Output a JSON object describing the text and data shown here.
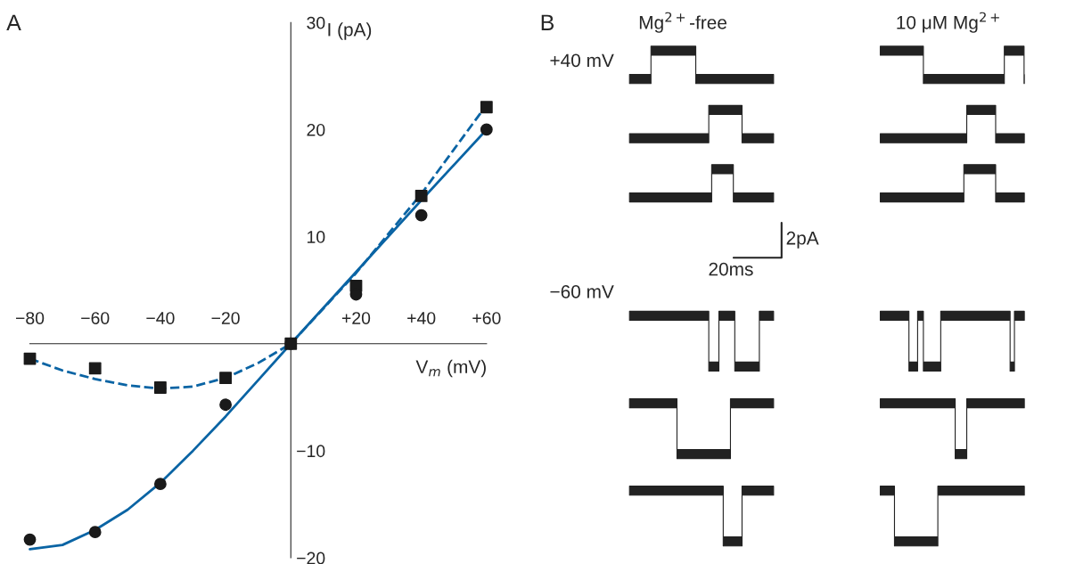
{
  "chart_data": [
    {
      "type": "scatter",
      "title": "A",
      "xlabel": "V$_{m}$ (mV)",
      "ylabel": "I (pA)",
      "xlim": [
        -80,
        60
      ],
      "ylim": [
        -20,
        30
      ],
      "xticks": [
        {
          "value": -80,
          "label": "−80"
        },
        {
          "value": -60,
          "label": "−60"
        },
        {
          "value": -40,
          "label": "−40"
        },
        {
          "value": -20,
          "label": "−20"
        },
        {
          "value": 20,
          "label": "+20"
        },
        {
          "value": 40,
          "label": "+40"
        },
        {
          "value": 60,
          "label": "+60"
        }
      ],
      "yticks": [
        {
          "value": -20,
          "label": "−20"
        },
        {
          "value": -10,
          "label": "−10"
        },
        10,
        20,
        30
      ],
      "grid": false,
      "series": [
        {
          "type": "scatter",
          "marker": "square",
          "color": "#1a1a1a",
          "x": [
            -80,
            -60,
            -40,
            -20,
            0,
            20,
            40,
            60
          ],
          "values": [
            -1.4,
            -2.3,
            -4.1,
            -3.2,
            0,
            5.4,
            13.8,
            22.1
          ]
        },
        {
          "type": "scatter",
          "marker": "circle",
          "color": "#1a1a1a",
          "x": [
            -80,
            -60,
            -40,
            -20,
            0,
            20,
            40,
            60
          ],
          "values": [
            -18.3,
            -17.6,
            -13.1,
            -5.7,
            0,
            4.6,
            12.0,
            20.0
          ]
        },
        {
          "type": "line",
          "line_style": "solid",
          "color": "#0a64a4",
          "x": [
            -80,
            -70,
            -60,
            -50,
            -40,
            -30,
            -20,
            -10,
            0,
            20,
            40,
            60
          ],
          "values": [
            -19.2,
            -18.8,
            -17.4,
            -15.5,
            -13.0,
            -10.0,
            -6.8,
            -3.4,
            0,
            6.7,
            13.4,
            20.0
          ]
        },
        {
          "type": "line",
          "line_style": "dashed",
          "color": "#0a64a4",
          "x": [
            -80,
            -70,
            -60,
            -50,
            -40,
            -30,
            -20,
            -10,
            0,
            20,
            40,
            60
          ],
          "values": [
            -1.4,
            -2.5,
            -3.3,
            -3.9,
            -4.2,
            -4.0,
            -3.2,
            -1.8,
            0,
            6.6,
            14.0,
            22.3
          ]
        }
      ]
    },
    {
      "type": "other",
      "title": "B",
      "annotations": [
        "Mg$^{2+}$-free",
        "10 μM Mg$^{2+}$",
        "+40 mV",
        "−60 mV",
        "2pA",
        "20ms"
      ]
    }
  ]
}
